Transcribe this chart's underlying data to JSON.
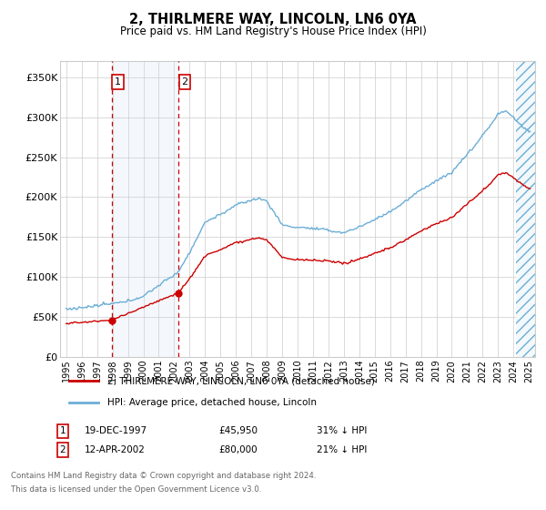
{
  "title": "2, THIRLMERE WAY, LINCOLN, LN6 0YA",
  "subtitle": "Price paid vs. HM Land Registry's House Price Index (HPI)",
  "ylim": [
    0,
    370000
  ],
  "yticks": [
    0,
    50000,
    100000,
    150000,
    200000,
    250000,
    300000,
    350000
  ],
  "ytick_labels": [
    "£0",
    "£50K",
    "£100K",
    "£150K",
    "£200K",
    "£250K",
    "£300K",
    "£350K"
  ],
  "xlim_start": 1994.6,
  "xlim_end": 2025.4,
  "transaction1_date": 1997.96,
  "transaction1_price": 45950,
  "transaction1_label": "1",
  "transaction2_date": 2002.28,
  "transaction2_price": 80000,
  "transaction2_label": "2",
  "hpi_line_color": "#6baed6",
  "price_line_color": "#cc0000",
  "marker_color": "#cc0000",
  "vline_color": "#cc0000",
  "shade_color": "#c6dbef",
  "hatch_color": "#6baed6",
  "hatch_end": 2025.4,
  "hatch_start": 2024.17,
  "legend_line1": "2, THIRLMERE WAY, LINCOLN, LN6 0YA (detached house)",
  "legend_line2": "HPI: Average price, detached house, Lincoln",
  "footer_line1": "Contains HM Land Registry data © Crown copyright and database right 2024.",
  "footer_line2": "This data is licensed under the Open Government Licence v3.0.",
  "background_color": "#ffffff",
  "grid_color": "#cccccc",
  "xtick_years": [
    1995,
    1996,
    1997,
    1998,
    1999,
    2000,
    2001,
    2002,
    2003,
    2004,
    2005,
    2006,
    2007,
    2008,
    2009,
    2010,
    2011,
    2012,
    2013,
    2014,
    2015,
    2016,
    2017,
    2018,
    2019,
    2020,
    2021,
    2022,
    2023,
    2024,
    2025
  ]
}
